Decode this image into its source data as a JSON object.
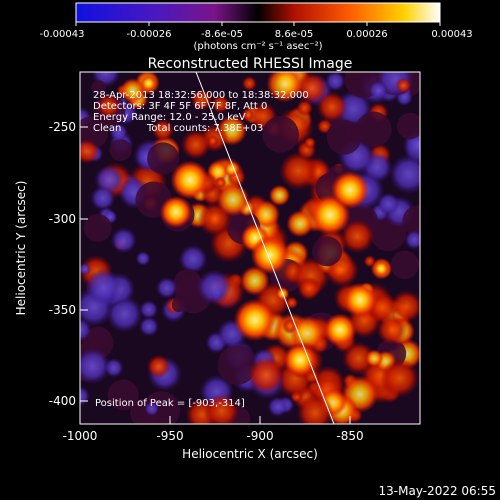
{
  "colorbar": {
    "tick_labels": [
      "-0.00043",
      "-0.00026",
      "-8.6e-05",
      "8.6e-05",
      "0.00026",
      "0.00043"
    ],
    "unit_label": "(photons cm⁻² s⁻¹ asec⁻²)",
    "range": [
      -0.00043,
      0.00043
    ]
  },
  "title": "Reconstructed RHESSI Image",
  "info": {
    "time_range": "28-Apr-2013 18:32:56.000 to 18:38:32.000",
    "detectors": "Detectors: 3F 4F 5F 6F 7F 8F, Att 0",
    "energy": "Energy Range: 12.0 - 25.0 keV",
    "algorithm": "Clean",
    "counts": "Total counts: 7.38E+03",
    "peak": "Position of Peak = [-903,-314]"
  },
  "axes": {
    "xlabel": "Heliocentric X (arcsec)",
    "ylabel": "Heliocentric Y (arcsec)",
    "xticks": [
      "-1000",
      "-950",
      "-900",
      "-850"
    ],
    "yticks": [
      "-250",
      "-300",
      "-350",
      "-400"
    ],
    "xlim": [
      -1000,
      -812
    ],
    "ylim": [
      -412,
      -230
    ]
  },
  "footer_date": "13-May-2022 06:55"
}
